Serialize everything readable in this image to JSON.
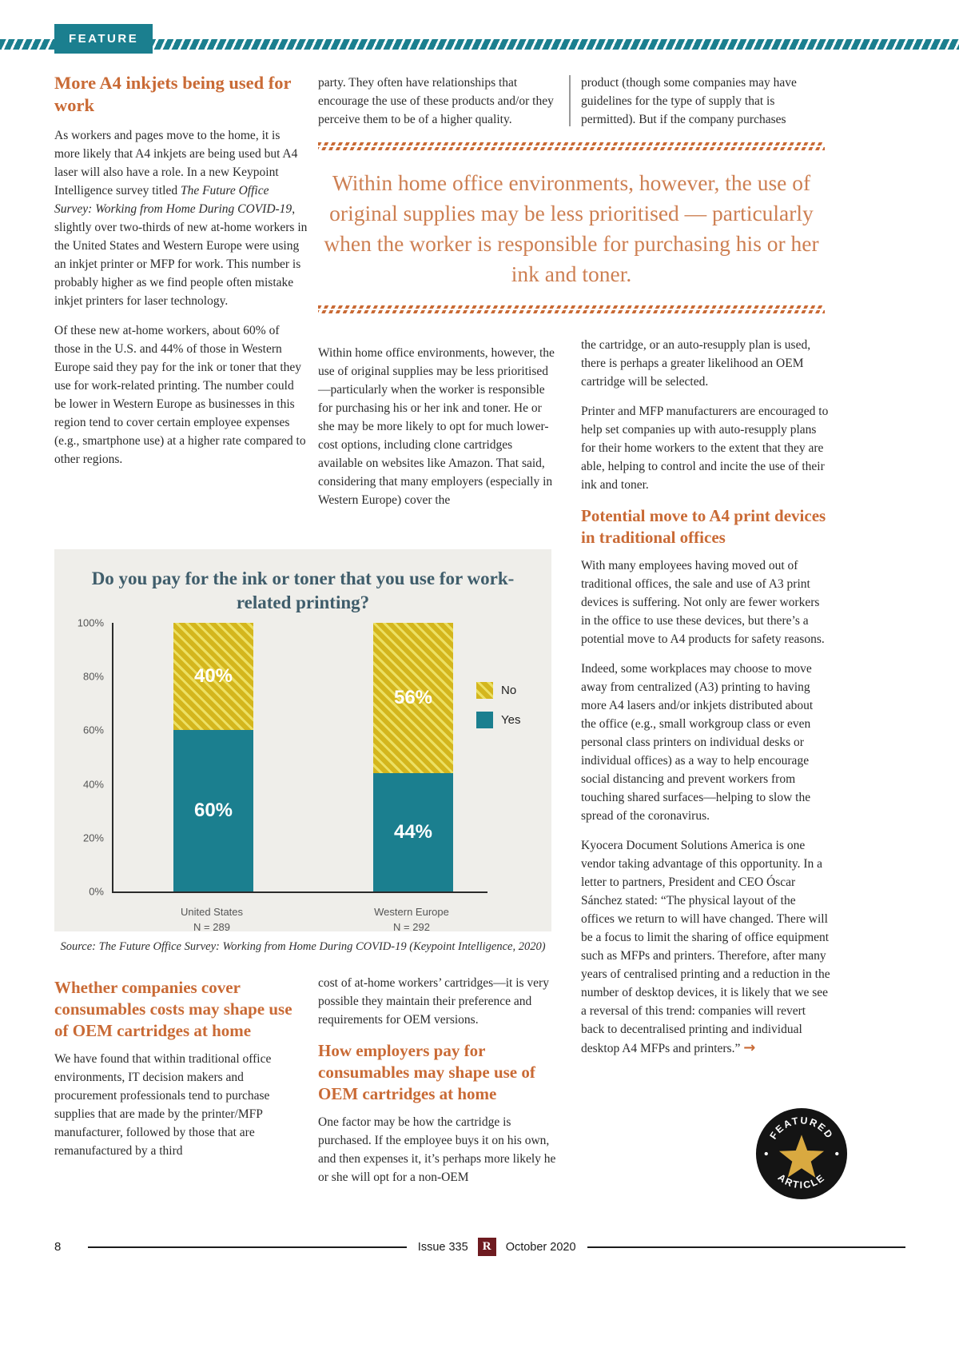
{
  "colors": {
    "teal": "#1b7f8f",
    "heading_orange": "#c96a35",
    "quote_orange": "#cd7f52",
    "chart_yellow": "#d4b61d",
    "badge_gold": "#d9a940"
  },
  "header": {
    "feature_tag": "FEATURE"
  },
  "article": {
    "pull_quote": "Within home office environments, however, the use of original supplies may be less prioritised — particularly when the worker is responsible for purchasing his or her ink and toner.",
    "col1": {
      "heading": "More A4 inkjets being used for work",
      "para1_a": "As workers and pages move to the home, it is more likely that A4 inkjets are being used but A4 laser will also have a role. In a new Keypoint Intelligence survey titled ",
      "para1_italic": "The Future Office Survey: Working from Home During COVID-19",
      "para1_b": ", slightly over two-thirds of new at-home workers in the United States and Western Europe were using an inkjet printer or MFP for work. This number is probably higher as we find people often mistake inkjet printers for laser technology.",
      "para2": "Of these new at-home workers, about 60% of those in the U.S. and 44% of those in Western Europe said they pay for the ink or toner that they use for work-related printing. The number could be lower in Western Europe as businesses in this region tend to cover certain employee expenses (e.g., smartphone use) at a higher rate compared to other regions.",
      "heading2": "Whether companies cover consumables costs may shape use of OEM cartridges at home",
      "para3": "We have found that within traditional office environments, IT decision makers and procurement professionals tend to purchase supplies that are made by the printer/MFP manufacturer, followed by those that are remanufactured by a third"
    },
    "col2": {
      "cont_top": "party. They often have relationships that encourage the use of these products and/or they perceive them to be of a higher quality.",
      "para_mid": "Within home office environments, however, the use of original supplies may be less prioritised—particularly when the worker is responsible for purchasing his or her ink and toner. He or she may be more likely to opt for much lower-cost options, including clone cartridges available on websites like Amazon. That said, considering that many employers (especially in Western Europe) cover the",
      "para_bottom1": "cost of at-home workers’ cartridges—it is very possible they maintain their preference and requirements for OEM versions.",
      "heading": "How employers pay for consumables may shape use of OEM cartridges at home",
      "para_bottom2": "One factor may be how the cartridge is purchased. If the employee buys it on his own, and then expenses it, it’s perhaps more likely he or she will opt for a non-OEM"
    },
    "col3": {
      "cont_top": "product (though some companies may have guidelines for the type of supply that is permitted). But if the company purchases",
      "para1": "the cartridge, or an auto-resupply plan is used, there is perhaps a greater likelihood an OEM cartridge will be selected.",
      "para2": "Printer and MFP manufacturers are encouraged to help set companies up with auto-resupply plans for their home workers to the extent that they are able, helping to control and incite the use of their ink and toner.",
      "heading": "Potential move to A4 print devices in traditional offices",
      "para3": "With many employees having moved out of traditional offices, the sale and use of A3 print devices is suffering. Not only are fewer workers in the office to use these devices, but there’s a potential move to A4 products for safety reasons.",
      "para4": "Indeed, some workplaces may choose to move away from centralized (A3) printing to having more A4 lasers and/or inkjets distributed about the office (e.g., small workgroup class or even personal class printers on individual desks or individual offices) as a way to help encourage social distancing and prevent workers from touching shared surfaces—helping to slow the spread of the coronavirus.",
      "para5": "Kyocera Document Solutions America is one vendor taking advantage of this opportunity. In a letter to partners, President and CEO Óscar Sánchez stated: “The physical layout of the offices we return to will have changed. There will be a focus to limit the sharing of office equipment such as MFPs and printers. Therefore, after many years of centralised printing and a reduction in the number of desktop devices, it is likely that we see a reversal of this trend: companies will revert back to decentralised printing and individual desktop A4 MFPs and printers.” ",
      "arrow": "→"
    }
  },
  "chart_data": {
    "type": "bar",
    "stacked": true,
    "title": "Do you pay for the ink or toner that you use for work-related printing?",
    "categories": [
      "United States",
      "Western Europe"
    ],
    "category_sublabels": [
      "N = 289",
      "N = 292"
    ],
    "series": [
      {
        "name": "Yes",
        "color": "#1b7f8f",
        "pattern": "solid",
        "values": [
          60,
          44
        ]
      },
      {
        "name": "No",
        "color": "#d4b61d",
        "pattern": "hatch",
        "values": [
          40,
          56
        ]
      }
    ],
    "ylim": [
      0,
      100
    ],
    "y_ticks": [
      "100%",
      "80%",
      "60%",
      "40%",
      "20%",
      "0%"
    ],
    "grid": false,
    "legend_position": "right",
    "source": "Source: The Future Office Survey: Working from Home During COVID-19 (Keypoint Intelligence, 2020)"
  },
  "badge": {
    "top": "FEATURED",
    "bottom": "ARTICLE"
  },
  "footer": {
    "page_number": "8",
    "issue": "Issue 335",
    "logo_letter": "R",
    "date": "October 2020"
  }
}
